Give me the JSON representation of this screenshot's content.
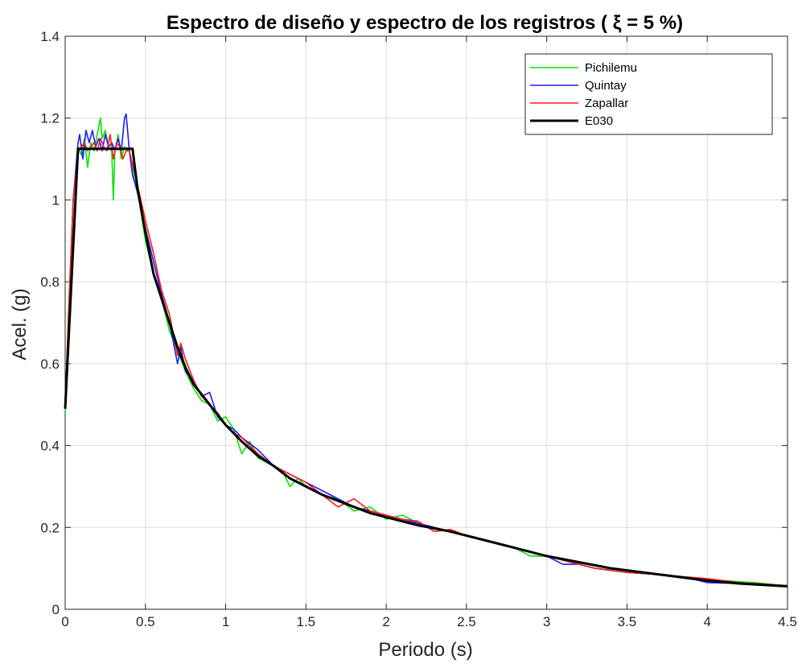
{
  "chart_data": {
    "type": "line",
    "title": "Espectro de diseño y espectro de los registros ( ξ = 5 %)",
    "xlabel": "Periodo (s)",
    "ylabel": "Acel. (g)",
    "xlim": [
      0,
      4.5
    ],
    "ylim": [
      0,
      1.4
    ],
    "xticks": [
      0,
      0.5,
      1,
      1.5,
      2,
      2.5,
      3,
      3.5,
      4,
      4.5
    ],
    "xtick_labels": [
      "0",
      "0.5",
      "1",
      "1.5",
      "2",
      "2.5",
      "3",
      "3.5",
      "4",
      "4.5"
    ],
    "yticks": [
      0,
      0.2,
      0.4,
      0.6,
      0.8,
      1,
      1.2,
      1.4
    ],
    "ytick_labels": [
      "0",
      "0.2",
      "0.4",
      "0.6",
      "0.8",
      "1",
      "1.2",
      "1.4"
    ],
    "grid": true,
    "legend_position": "top-right",
    "series": [
      {
        "name": "Pichilemu",
        "color": "#00e600",
        "x": [
          0.0,
          0.02,
          0.05,
          0.08,
          0.1,
          0.12,
          0.14,
          0.16,
          0.18,
          0.2,
          0.22,
          0.23,
          0.25,
          0.27,
          0.29,
          0.3,
          0.31,
          0.33,
          0.35,
          0.37,
          0.4,
          0.43,
          0.46,
          0.5,
          0.55,
          0.6,
          0.65,
          0.7,
          0.75,
          0.8,
          0.85,
          0.9,
          0.95,
          1.0,
          1.05,
          1.1,
          1.15,
          1.2,
          1.25,
          1.3,
          1.35,
          1.4,
          1.45,
          1.5,
          1.6,
          1.7,
          1.8,
          1.9,
          2.0,
          2.1,
          2.2,
          2.3,
          2.4,
          2.5,
          2.6,
          2.7,
          2.8,
          2.9,
          3.0,
          3.1,
          3.2,
          3.3,
          3.5,
          3.7,
          3.9,
          4.1,
          4.3,
          4.5
        ],
        "values": [
          0.48,
          0.72,
          1.0,
          1.13,
          1.11,
          1.15,
          1.08,
          1.14,
          1.12,
          1.16,
          1.2,
          1.15,
          1.17,
          1.13,
          1.12,
          1.0,
          1.12,
          1.16,
          1.1,
          1.13,
          1.12,
          1.05,
          1.0,
          0.9,
          0.82,
          0.76,
          0.68,
          0.63,
          0.58,
          0.54,
          0.51,
          0.5,
          0.46,
          0.47,
          0.44,
          0.38,
          0.41,
          0.37,
          0.36,
          0.35,
          0.34,
          0.3,
          0.32,
          0.3,
          0.28,
          0.27,
          0.24,
          0.25,
          0.22,
          0.23,
          0.21,
          0.2,
          0.19,
          0.18,
          0.17,
          0.16,
          0.15,
          0.13,
          0.13,
          0.12,
          0.11,
          0.1,
          0.09,
          0.085,
          0.075,
          0.07,
          0.065,
          0.057
        ]
      },
      {
        "name": "Quintay",
        "color": "#1a1aff",
        "x": [
          0.0,
          0.02,
          0.05,
          0.08,
          0.09,
          0.11,
          0.13,
          0.15,
          0.17,
          0.19,
          0.21,
          0.23,
          0.25,
          0.27,
          0.29,
          0.31,
          0.33,
          0.35,
          0.37,
          0.38,
          0.4,
          0.42,
          0.45,
          0.5,
          0.55,
          0.6,
          0.65,
          0.7,
          0.72,
          0.75,
          0.8,
          0.85,
          0.9,
          0.95,
          1.0,
          1.05,
          1.1,
          1.2,
          1.3,
          1.4,
          1.5,
          1.6,
          1.7,
          1.8,
          1.9,
          2.0,
          2.1,
          2.2,
          2.3,
          2.4,
          2.5,
          2.6,
          2.7,
          2.8,
          2.9,
          3.0,
          3.1,
          3.2,
          3.3,
          3.5,
          3.7,
          3.9,
          4.0,
          4.2,
          4.5
        ],
        "values": [
          0.49,
          0.7,
          1.0,
          1.14,
          1.16,
          1.1,
          1.17,
          1.14,
          1.17,
          1.13,
          1.15,
          1.12,
          1.16,
          1.13,
          1.14,
          1.12,
          1.15,
          1.12,
          1.2,
          1.21,
          1.12,
          1.06,
          1.02,
          0.93,
          0.85,
          0.77,
          0.7,
          0.6,
          0.64,
          0.58,
          0.56,
          0.52,
          0.53,
          0.47,
          0.45,
          0.44,
          0.42,
          0.39,
          0.35,
          0.33,
          0.31,
          0.29,
          0.27,
          0.25,
          0.24,
          0.23,
          0.22,
          0.21,
          0.2,
          0.19,
          0.18,
          0.17,
          0.16,
          0.15,
          0.14,
          0.13,
          0.11,
          0.11,
          0.1,
          0.09,
          0.085,
          0.075,
          0.065,
          0.063,
          0.058
        ]
      },
      {
        "name": "Zapallar",
        "color": "#ff1a1a",
        "x": [
          0.0,
          0.02,
          0.05,
          0.08,
          0.1,
          0.12,
          0.14,
          0.16,
          0.18,
          0.2,
          0.22,
          0.24,
          0.26,
          0.28,
          0.3,
          0.32,
          0.34,
          0.36,
          0.38,
          0.4,
          0.43,
          0.46,
          0.5,
          0.55,
          0.6,
          0.65,
          0.7,
          0.72,
          0.75,
          0.8,
          0.85,
          0.9,
          0.95,
          1.0,
          1.05,
          1.1,
          1.2,
          1.3,
          1.4,
          1.5,
          1.6,
          1.7,
          1.8,
          1.9,
          2.0,
          2.1,
          2.2,
          2.3,
          2.4,
          2.5,
          2.6,
          2.7,
          2.8,
          2.9,
          3.0,
          3.1,
          3.2,
          3.3,
          3.5,
          3.7,
          3.9,
          4.0,
          4.2,
          4.5
        ],
        "values": [
          0.49,
          0.71,
          1.0,
          1.12,
          1.13,
          1.14,
          1.12,
          1.13,
          1.14,
          1.12,
          1.15,
          1.13,
          1.12,
          1.16,
          1.1,
          1.14,
          1.13,
          1.1,
          1.12,
          1.12,
          1.07,
          1.02,
          0.95,
          0.87,
          0.78,
          0.72,
          0.62,
          0.65,
          0.61,
          0.56,
          0.52,
          0.5,
          0.48,
          0.45,
          0.43,
          0.42,
          0.38,
          0.35,
          0.33,
          0.31,
          0.28,
          0.25,
          0.27,
          0.24,
          0.23,
          0.22,
          0.215,
          0.19,
          0.195,
          0.18,
          0.17,
          0.16,
          0.15,
          0.14,
          0.13,
          0.12,
          0.11,
          0.1,
          0.09,
          0.085,
          0.078,
          0.075,
          0.065,
          0.058
        ]
      },
      {
        "name": "E030",
        "color": "#000000",
        "x": [
          0.0,
          0.08,
          0.1,
          0.2,
          0.3,
          0.4,
          0.42,
          0.45,
          0.5,
          0.55,
          0.6,
          0.65,
          0.7,
          0.75,
          0.8,
          0.9,
          1.0,
          1.1,
          1.2,
          1.3,
          1.4,
          1.5,
          1.6,
          1.7,
          1.8,
          1.9,
          2.0,
          2.2,
          2.4,
          2.6,
          2.8,
          3.0,
          3.2,
          3.4,
          3.6,
          3.8,
          4.0,
          4.2,
          4.5
        ],
        "values": [
          0.49,
          1.125,
          1.125,
          1.125,
          1.125,
          1.125,
          1.125,
          1.03,
          0.92,
          0.82,
          0.76,
          0.7,
          0.64,
          0.59,
          0.55,
          0.5,
          0.45,
          0.41,
          0.375,
          0.35,
          0.32,
          0.3,
          0.28,
          0.265,
          0.25,
          0.235,
          0.225,
          0.205,
          0.19,
          0.17,
          0.15,
          0.13,
          0.115,
          0.1,
          0.09,
          0.08,
          0.07,
          0.063,
          0.056
        ]
      }
    ]
  }
}
